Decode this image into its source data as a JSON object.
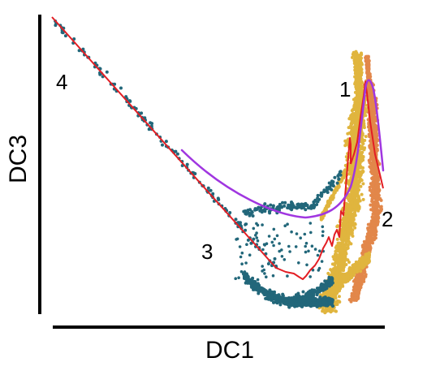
{
  "chart_data": {
    "type": "scatter",
    "title": "",
    "xlabel": "DC1",
    "ylabel": "DC3",
    "xticks": false,
    "yticks": false,
    "grid": false,
    "legend": "none",
    "branch_labels": [
      "1",
      "2",
      "3",
      "4"
    ],
    "colors": {
      "teal": "#22677a",
      "gold": "#e0b53e",
      "orange": "#e2874a",
      "red": "#e31e24",
      "purple": "#a036e0"
    }
  }
}
